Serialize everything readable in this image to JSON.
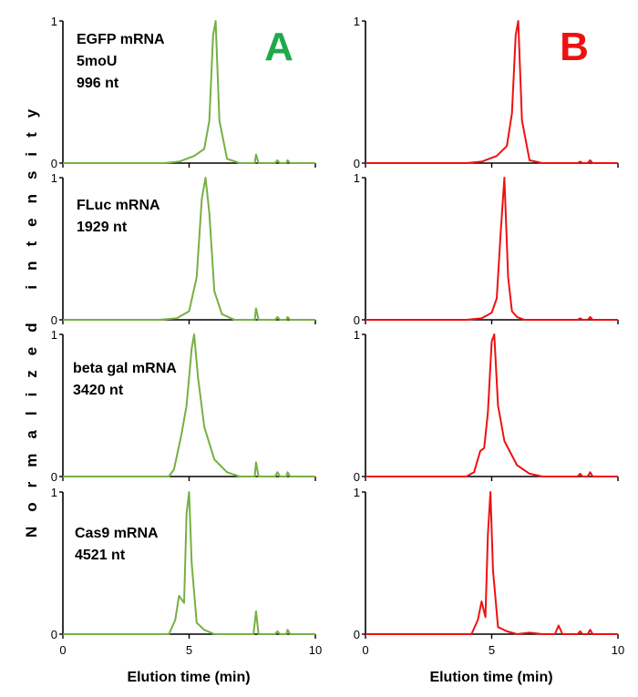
{
  "figure": {
    "y_axis_label": "Normalized intensity",
    "x_axis_label": "Elution time (min)",
    "panel_letters": [
      {
        "text": "A",
        "color": "#1faa4a"
      },
      {
        "text": "B",
        "color": "#ee1111"
      }
    ],
    "rows": [
      {
        "lines": [
          "EGFP mRNA",
          "5moU",
          "996 nt"
        ]
      },
      {
        "lines": [
          "FLuc mRNA",
          "1929 nt"
        ]
      },
      {
        "lines": [
          "beta gal mRNA",
          "3420 nt"
        ]
      },
      {
        "lines": [
          "Cas9 mRNA",
          "4521 nt"
        ]
      }
    ]
  },
  "chart_data": [
    {
      "type": "line",
      "column": "A",
      "row": 0,
      "color": "#76b043",
      "xlim": [
        0,
        10
      ],
      "ylim": [
        0,
        1
      ],
      "xticks": [
        "0",
        "5",
        "10"
      ],
      "yticks": [
        "0",
        "1"
      ],
      "series": [
        {
          "x": [
            0,
            4.0,
            4.6,
            5.2,
            5.6,
            5.8,
            5.95,
            6.05,
            6.2,
            6.5,
            7.0,
            7.6,
            7.65,
            7.75,
            8.4,
            8.5,
            8.6,
            8.85,
            8.9,
            9.0,
            10
          ],
          "y": [
            0,
            0,
            0.01,
            0.05,
            0.1,
            0.3,
            0.9,
            1.0,
            0.3,
            0.03,
            0.0,
            0.0,
            0.06,
            0.0,
            0.0,
            0.02,
            0.0,
            0.0,
            0.02,
            0.0,
            0
          ]
        }
      ]
    },
    {
      "type": "line",
      "column": "A",
      "row": 1,
      "color": "#76b043",
      "xlim": [
        0,
        10
      ],
      "ylim": [
        0,
        1
      ],
      "xticks": [
        "0",
        "5",
        "10"
      ],
      "yticks": [
        "0",
        "1"
      ],
      "series": [
        {
          "x": [
            0,
            3.8,
            4.5,
            5.0,
            5.3,
            5.5,
            5.65,
            5.8,
            6.0,
            6.3,
            6.8,
            7.6,
            7.65,
            7.75,
            8.4,
            8.5,
            8.6,
            8.85,
            8.9,
            9.0,
            10
          ],
          "y": [
            0,
            0,
            0.01,
            0.06,
            0.3,
            0.85,
            1.0,
            0.75,
            0.2,
            0.04,
            0.0,
            0.0,
            0.08,
            0.0,
            0.0,
            0.02,
            0.0,
            0.0,
            0.02,
            0.0,
            0
          ]
        }
      ]
    },
    {
      "type": "line",
      "column": "A",
      "row": 2,
      "color": "#76b043",
      "xlim": [
        0,
        10
      ],
      "ylim": [
        0,
        1
      ],
      "xticks": [
        "0",
        "5",
        "10"
      ],
      "yticks": [
        "0",
        "1"
      ],
      "series": [
        {
          "x": [
            0,
            4.2,
            4.4,
            4.7,
            4.9,
            5.1,
            5.2,
            5.35,
            5.6,
            6.0,
            6.5,
            7.0,
            7.6,
            7.65,
            7.75,
            8.4,
            8.5,
            8.6,
            8.85,
            8.9,
            9.0,
            10
          ],
          "y": [
            0,
            0,
            0.05,
            0.3,
            0.5,
            0.9,
            1.0,
            0.7,
            0.35,
            0.12,
            0.03,
            0.0,
            0.0,
            0.1,
            0.0,
            0.0,
            0.03,
            0.0,
            0.0,
            0.03,
            0.0,
            0
          ]
        }
      ]
    },
    {
      "type": "line",
      "column": "A",
      "row": 3,
      "color": "#76b043",
      "xlim": [
        0,
        10
      ],
      "ylim": [
        0,
        1
      ],
      "xticks": [
        "0",
        "5",
        "10"
      ],
      "yticks": [
        "0",
        "1"
      ],
      "series": [
        {
          "x": [
            0,
            4.2,
            4.45,
            4.6,
            4.8,
            4.9,
            5.0,
            5.1,
            5.3,
            5.6,
            6.0,
            7.0,
            7.55,
            7.65,
            7.75,
            8.4,
            8.5,
            8.6,
            8.85,
            8.9,
            9.0,
            10
          ],
          "y": [
            0,
            0,
            0.1,
            0.27,
            0.22,
            0.85,
            1.0,
            0.5,
            0.08,
            0.03,
            0.0,
            0.0,
            0.0,
            0.16,
            0.0,
            0.0,
            0.02,
            0.0,
            0.0,
            0.03,
            0.0,
            0
          ]
        }
      ]
    },
    {
      "type": "line",
      "column": "B",
      "row": 0,
      "color": "#ee1111",
      "xlim": [
        0,
        10
      ],
      "ylim": [
        0,
        1
      ],
      "xticks": [
        "0",
        "5",
        "10"
      ],
      "yticks": [
        "0",
        "1"
      ],
      "series": [
        {
          "x": [
            0,
            4.0,
            4.6,
            5.2,
            5.6,
            5.8,
            5.95,
            6.05,
            6.2,
            6.5,
            7.0,
            8.4,
            8.5,
            8.6,
            8.8,
            8.9,
            9.0,
            10
          ],
          "y": [
            0,
            0,
            0.01,
            0.05,
            0.12,
            0.35,
            0.9,
            1.0,
            0.3,
            0.02,
            0.0,
            0.0,
            0.01,
            0.0,
            0.0,
            0.02,
            0.0,
            0
          ]
        }
      ]
    },
    {
      "type": "line",
      "column": "B",
      "row": 1,
      "color": "#ee1111",
      "xlim": [
        0,
        10
      ],
      "ylim": [
        0,
        1
      ],
      "xticks": [
        "0",
        "5",
        "10"
      ],
      "yticks": [
        "0",
        "1"
      ],
      "series": [
        {
          "x": [
            0,
            4.0,
            4.6,
            5.0,
            5.2,
            5.35,
            5.5,
            5.65,
            5.8,
            6.0,
            6.3,
            7.0,
            8.4,
            8.5,
            8.6,
            8.8,
            8.9,
            9.0,
            10
          ],
          "y": [
            0,
            0,
            0.01,
            0.05,
            0.15,
            0.6,
            1.0,
            0.3,
            0.06,
            0.02,
            0.0,
            0.0,
            0.0,
            0.01,
            0.0,
            0.0,
            0.02,
            0.0,
            0
          ]
        }
      ]
    },
    {
      "type": "line",
      "column": "B",
      "row": 2,
      "color": "#ee1111",
      "xlim": [
        0,
        10
      ],
      "ylim": [
        0,
        1
      ],
      "xticks": [
        "0",
        "5",
        "10"
      ],
      "yticks": [
        "0",
        "1"
      ],
      "series": [
        {
          "x": [
            0,
            4.0,
            4.3,
            4.55,
            4.7,
            4.85,
            5.0,
            5.1,
            5.25,
            5.5,
            6.0,
            6.5,
            7.0,
            8.4,
            8.5,
            8.6,
            8.8,
            8.9,
            9.0,
            10
          ],
          "y": [
            0,
            0,
            0.03,
            0.18,
            0.2,
            0.45,
            0.95,
            1.0,
            0.5,
            0.25,
            0.08,
            0.02,
            0.0,
            0.0,
            0.02,
            0.0,
            0.0,
            0.03,
            0.0,
            0
          ]
        }
      ]
    },
    {
      "type": "line",
      "column": "B",
      "row": 3,
      "color": "#ee1111",
      "xlim": [
        0,
        10
      ],
      "ylim": [
        0,
        1
      ],
      "xticks": [
        "0",
        "5",
        "10"
      ],
      "yticks": [
        "0",
        "1"
      ],
      "series": [
        {
          "x": [
            0,
            4.2,
            4.45,
            4.6,
            4.75,
            4.85,
            4.95,
            5.05,
            5.25,
            5.6,
            6.0,
            6.5,
            7.0,
            7.5,
            7.65,
            7.8,
            8.4,
            8.5,
            8.6,
            8.8,
            8.9,
            9.0,
            10
          ],
          "y": [
            0,
            0,
            0.1,
            0.23,
            0.12,
            0.7,
            1.0,
            0.45,
            0.05,
            0.02,
            0.0,
            0.01,
            0.0,
            0.0,
            0.06,
            0.0,
            0.0,
            0.02,
            0.0,
            0.0,
            0.03,
            0.0,
            0
          ]
        }
      ]
    }
  ]
}
